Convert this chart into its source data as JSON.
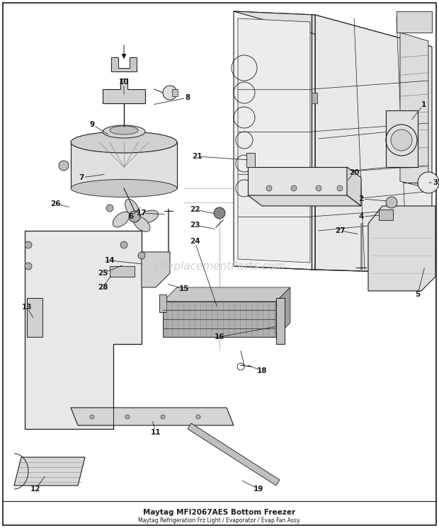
{
  "title": "Maytag MFI2067AES Bottom Freezer",
  "subtitle": "Maytag Refrigeration Frz Light / Evaporator / Evap Fan Assy.",
  "watermark": "eReplacementParts.com",
  "bg": "#ffffff",
  "lc": "#1a1a1a",
  "wc": "#c8c8c8",
  "fig_w": 6.2,
  "fig_h": 7.46,
  "dpi": 100
}
